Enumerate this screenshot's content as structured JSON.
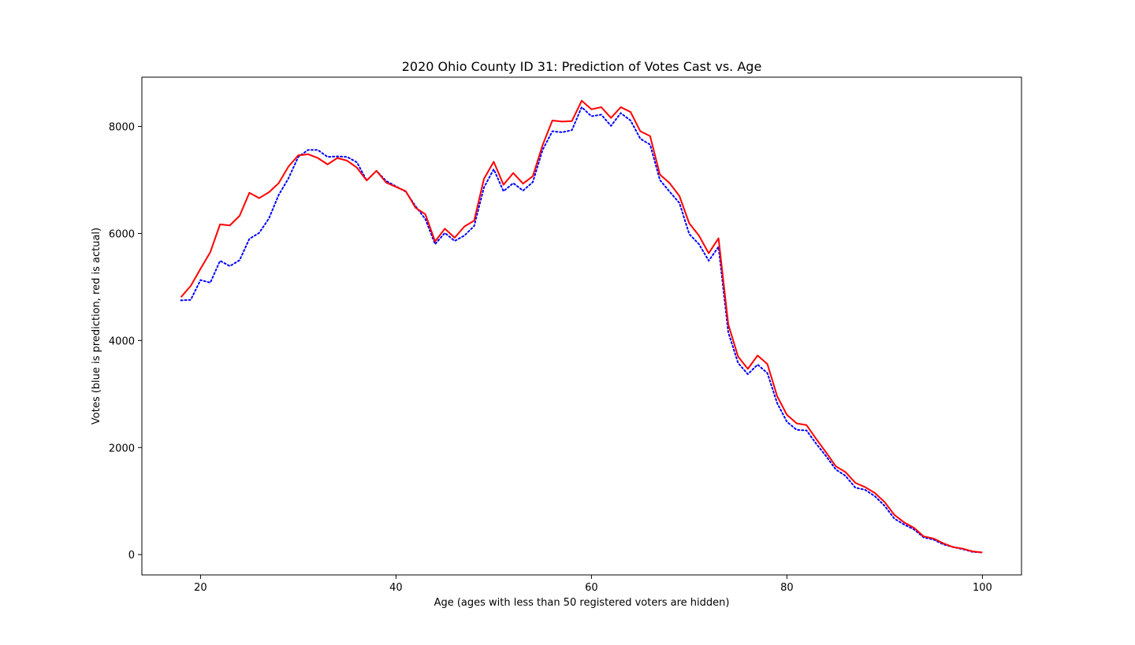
{
  "chart_data": {
    "type": "line",
    "title": "2020 Ohio County ID 31: Prediction of Votes Cast vs. Age",
    "xlabel": "Age (ages with less than 50 registered voters are hidden)",
    "ylabel": "Votes (blue is prediction, red is actual)",
    "xlim": [
      14,
      104
    ],
    "ylim": [
      -380,
      8920
    ],
    "xticks": [
      20,
      40,
      60,
      80,
      100
    ],
    "yticks": [
      0,
      2000,
      4000,
      6000,
      8000
    ],
    "grid": false,
    "x": [
      18,
      19,
      20,
      21,
      22,
      23,
      24,
      25,
      26,
      27,
      28,
      29,
      30,
      31,
      32,
      33,
      34,
      35,
      36,
      37,
      38,
      39,
      40,
      41,
      42,
      43,
      44,
      45,
      46,
      47,
      48,
      49,
      50,
      51,
      52,
      53,
      54,
      55,
      56,
      57,
      58,
      59,
      60,
      61,
      62,
      63,
      64,
      65,
      66,
      67,
      68,
      69,
      70,
      71,
      72,
      73,
      74,
      75,
      76,
      77,
      78,
      79,
      80,
      81,
      82,
      83,
      84,
      85,
      86,
      87,
      88,
      89,
      90,
      91,
      92,
      93,
      94,
      95,
      96,
      97,
      98,
      99,
      100
    ],
    "series": [
      {
        "color": "#0000ff",
        "style": "dotted",
        "values": [
          4750,
          4760,
          5130,
          5080,
          5490,
          5390,
          5500,
          5900,
          6010,
          6280,
          6720,
          7030,
          7430,
          7560,
          7560,
          7430,
          7440,
          7430,
          7330,
          6990,
          7170,
          6980,
          6880,
          6780,
          6510,
          6270,
          5800,
          6010,
          5860,
          5960,
          6140,
          6860,
          7200,
          6790,
          6940,
          6800,
          6960,
          7560,
          7910,
          7890,
          7930,
          8360,
          8190,
          8220,
          8010,
          8250,
          8110,
          7770,
          7660,
          7000,
          6780,
          6570,
          5990,
          5800,
          5490,
          5750,
          4150,
          3580,
          3370,
          3550,
          3390,
          2830,
          2480,
          2330,
          2320,
          2070,
          1840,
          1590,
          1470,
          1250,
          1210,
          1090,
          910,
          670,
          560,
          470,
          320,
          280,
          190,
          140,
          100,
          50,
          40
        ]
      },
      {
        "color": "#ff0000",
        "style": "solid",
        "values": [
          4810,
          5020,
          5340,
          5650,
          6170,
          6150,
          6330,
          6760,
          6660,
          6770,
          6940,
          7250,
          7460,
          7480,
          7410,
          7290,
          7410,
          7360,
          7230,
          6990,
          7170,
          6950,
          6870,
          6790,
          6480,
          6360,
          5850,
          6090,
          5920,
          6130,
          6240,
          7020,
          7340,
          6910,
          7130,
          6930,
          7070,
          7650,
          8110,
          8090,
          8100,
          8480,
          8320,
          8360,
          8160,
          8360,
          8270,
          7910,
          7820,
          7100,
          6940,
          6700,
          6190,
          5960,
          5630,
          5910,
          4300,
          3700,
          3470,
          3720,
          3560,
          2960,
          2610,
          2450,
          2420,
          2160,
          1910,
          1650,
          1540,
          1340,
          1260,
          1150,
          980,
          740,
          600,
          500,
          340,
          300,
          210,
          140,
          110,
          60,
          40
        ]
      }
    ]
  }
}
